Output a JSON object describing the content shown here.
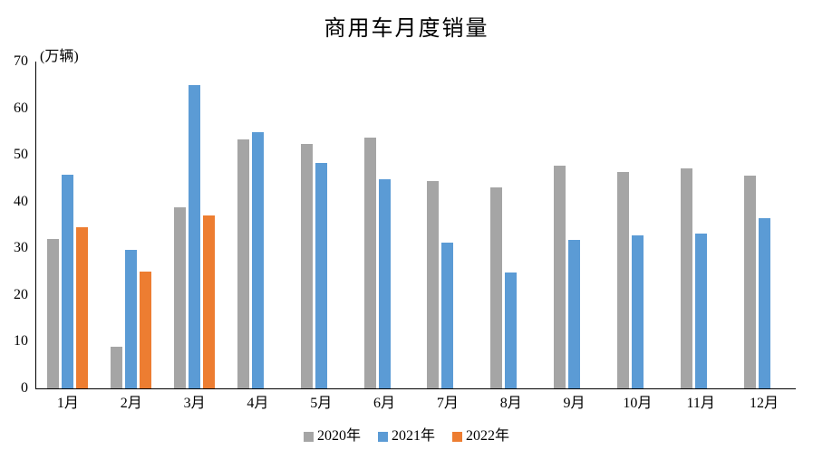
{
  "page": {
    "background": "#ffffff"
  },
  "header": {
    "title": "商用车月度销量"
  },
  "axes": {
    "unit_label": "(万辆)",
    "axis_color": "#000000"
  },
  "chart_data": {
    "type": "bar",
    "title": "商用车月度销量",
    "xlabel": "",
    "ylabel": "(万辆)",
    "ylim": [
      0,
      70
    ],
    "yticks": [
      0,
      10,
      20,
      30,
      40,
      50,
      60,
      70
    ],
    "grid": false,
    "legend_position": "bottom",
    "categories": [
      "1月",
      "2月",
      "3月",
      "4月",
      "5月",
      "6月",
      "7月",
      "8月",
      "9月",
      "10月",
      "11月",
      "12月"
    ],
    "series": [
      {
        "name": "2020年",
        "color": "#A5A5A5",
        "values": [
          32.0,
          8.9,
          38.8,
          53.4,
          52.3,
          53.8,
          44.5,
          43.0,
          47.8,
          46.3,
          47.2,
          45.6
        ]
      },
      {
        "name": "2021年",
        "color": "#5B9BD5",
        "values": [
          45.8,
          29.7,
          65.0,
          54.8,
          48.3,
          44.8,
          31.3,
          24.8,
          31.8,
          32.7,
          33.1,
          36.5
        ]
      },
      {
        "name": "2022年",
        "color": "#ED7D31",
        "values": [
          34.5,
          25.0,
          37.0,
          null,
          null,
          null,
          null,
          null,
          null,
          null,
          null,
          null
        ]
      }
    ]
  }
}
